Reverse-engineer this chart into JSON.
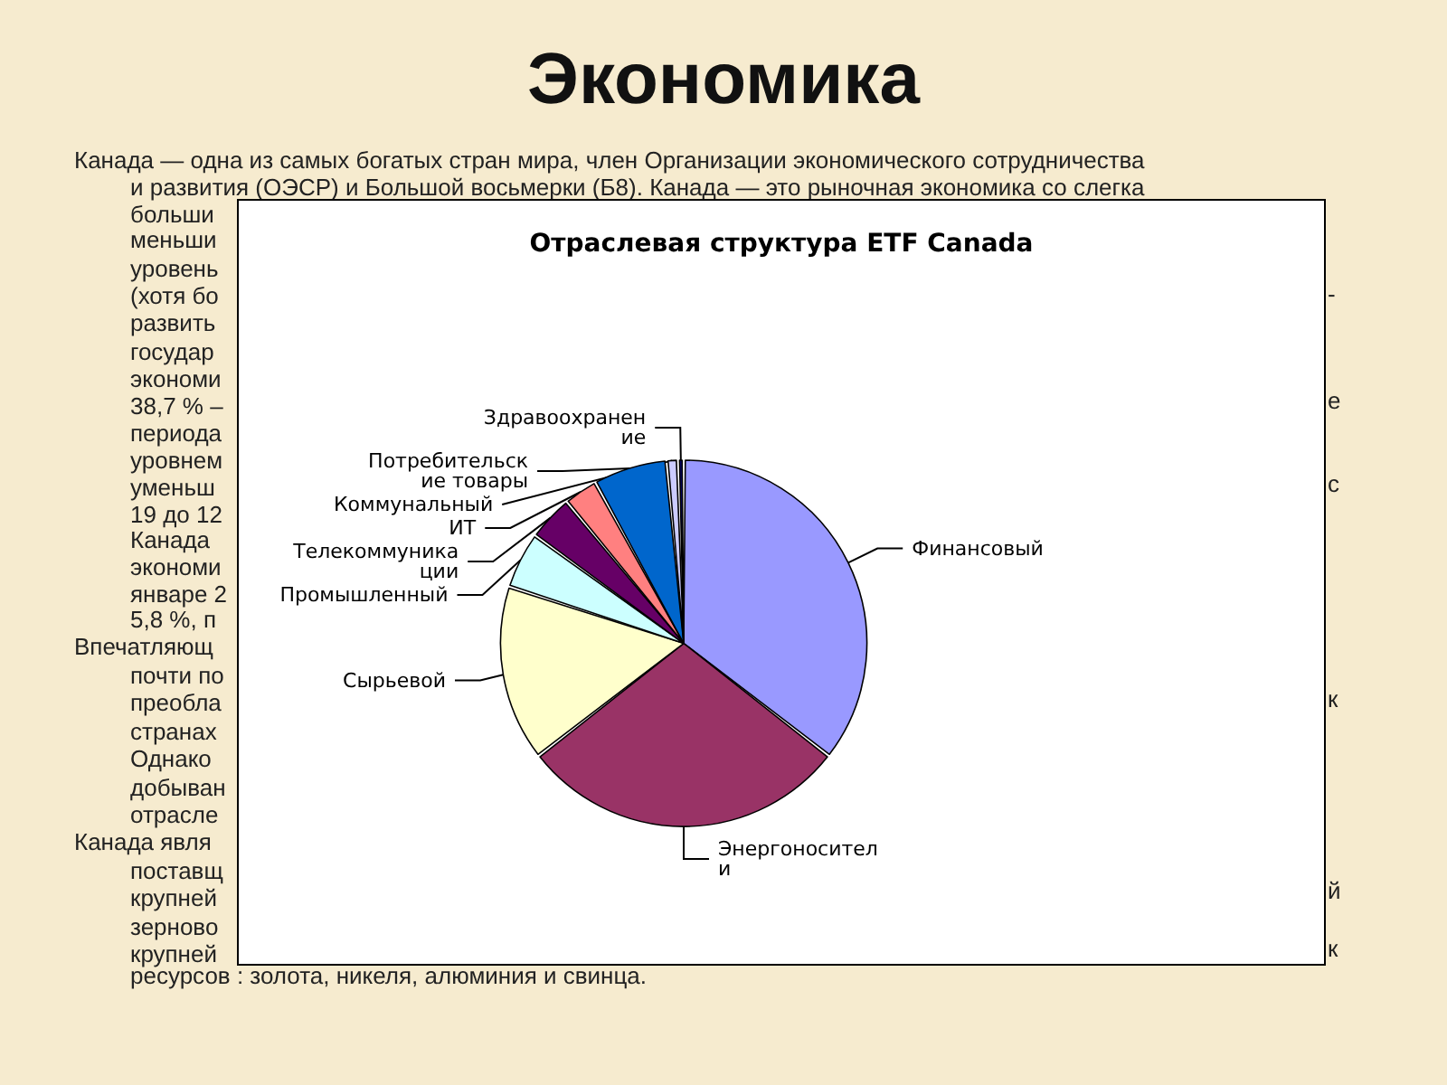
{
  "chart_data": {
    "type": "pie",
    "title": "Отраслевая структура ETF Canada",
    "categories": [
      "Финансовый",
      "Энергоносители",
      "Сырьевой",
      "Промышленный",
      "Телекоммуникации",
      "ИТ",
      "Потребительские товары",
      "Коммунальный",
      "Здравоохранение"
    ],
    "values": [
      35.5,
      29,
      15.5,
      5,
      4,
      3,
      6.5,
      1,
      0.5
    ],
    "colors": [
      "#9999ff",
      "#993366",
      "#ffffcc",
      "#ccffff",
      "#660066",
      "#ff8080",
      "#0066cc",
      "#ccccff",
      "#000080"
    ],
    "legend": false,
    "annotations": [
      "Экономика",
      "Канада — одна из самых богатых стран мира, член Организации экономического сотрудничества",
      "и развития (ОЭСР) и Большой восьмерки (Б8). Канада — это рыночная экономика со слегка",
      "больши",
      "меньши",
      "уровень",
      "(хотя бо",
      "развить",
      "государ",
      "экономи",
      "38,7 % –",
      "периода",
      "уровнем",
      "уменьш",
      "19 до 12",
      "Канада",
      "экономи",
      "январе 2",
      "5,8 %, п",
      "Впечатляющ",
      "почти по",
      "преобла",
      "странах",
      "Однако",
      "добыван",
      "отрасле",
      "Канада явля",
      "поставщ",
      "крупней",
      "зерново",
      "крупней",
      "ресурсов : золота, никеля, алюминия и свинца.",
      "-",
      "е",
      "с",
      "к",
      "й",
      "к"
    ]
  }
}
